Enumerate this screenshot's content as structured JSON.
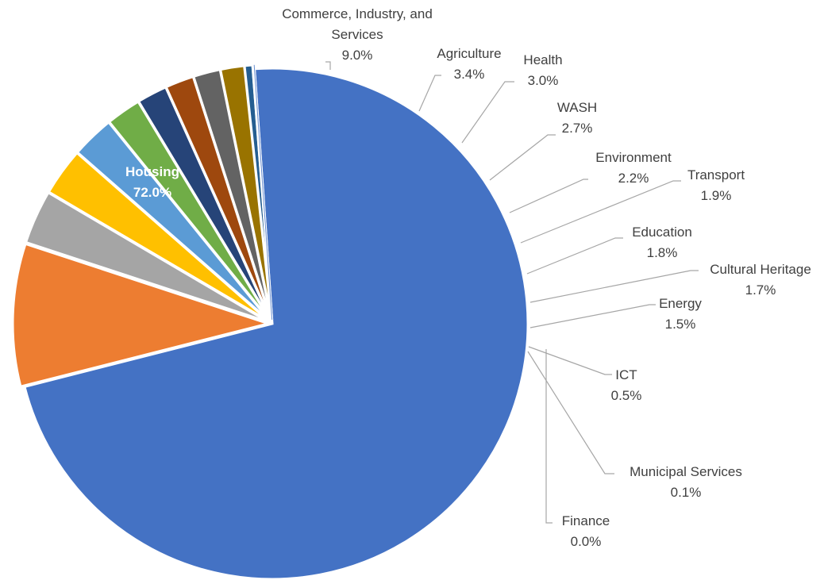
{
  "chart_data": {
    "type": "pie",
    "title": "",
    "series": [
      {
        "values": [
          72.0,
          9.0,
          3.4,
          3.0,
          2.7,
          2.2,
          1.9,
          1.8,
          1.7,
          1.5,
          0.5,
          0.1,
          0.0
        ]
      }
    ],
    "slices": [
      {
        "label_lines": [
          "Housing"
        ],
        "value": 72.0,
        "display": "72.0%",
        "color": "#4472C4"
      },
      {
        "label_lines": [
          "Commerce, Industry, and",
          "Services"
        ],
        "value": 9.0,
        "display": "9.0%",
        "color": "#ED7D31"
      },
      {
        "label_lines": [
          "Agriculture"
        ],
        "value": 3.4,
        "display": "3.4%",
        "color": "#A5A5A5"
      },
      {
        "label_lines": [
          "Health"
        ],
        "value": 3.0,
        "display": "3.0%",
        "color": "#FFC000"
      },
      {
        "label_lines": [
          "WASH"
        ],
        "value": 2.7,
        "display": "2.7%",
        "color": "#5B9BD5"
      },
      {
        "label_lines": [
          "Environment"
        ],
        "value": 2.2,
        "display": "2.2%",
        "color": "#70AD47"
      },
      {
        "label_lines": [
          "Transport"
        ],
        "value": 1.9,
        "display": "1.9%",
        "color": "#264478"
      },
      {
        "label_lines": [
          "Education"
        ],
        "value": 1.8,
        "display": "1.8%",
        "color": "#9E480E"
      },
      {
        "label_lines": [
          "Cultural Heritage"
        ],
        "value": 1.7,
        "display": "1.7%",
        "color": "#636363"
      },
      {
        "label_lines": [
          "Energy"
        ],
        "value": 1.5,
        "display": "1.5%",
        "color": "#997300"
      },
      {
        "label_lines": [
          "ICT"
        ],
        "value": 0.5,
        "display": "0.5%",
        "color": "#255E91"
      },
      {
        "label_lines": [
          "Municipal Services"
        ],
        "value": 0.1,
        "display": "0.1%",
        "color": "#43682B"
      },
      {
        "label_lines": [
          "Finance"
        ],
        "value": 0.0,
        "display": "0.0%",
        "color": "#698ED0"
      }
    ],
    "legend": "none",
    "data_labels": "outside-with-leader-lines"
  }
}
